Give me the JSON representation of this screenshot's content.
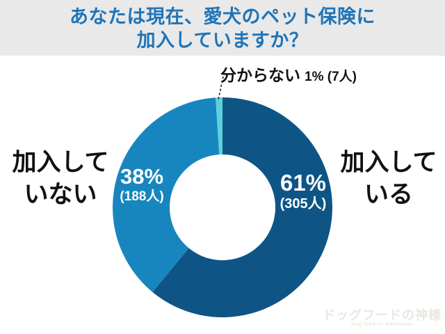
{
  "header": {
    "title_line1": "あなたは現在、愛犬のペット保険に",
    "title_line2": "加入していますか？"
  },
  "colors": {
    "title_text": "#1f74b8",
    "header_band": "#e9e9e9",
    "callout_text": "#111111",
    "inside_label_text": "#ffffff",
    "watermark_text": "#eae7e1"
  },
  "chart_data": {
    "type": "pie",
    "donut": true,
    "title": "あなたは現在、愛犬のペット保険に加入していますか？",
    "direction": "clockwise",
    "start_angle_deg": 0,
    "unit": "人",
    "slices": [
      {
        "label": "加入している",
        "percent": 61,
        "count": 305,
        "percent_label": "61%",
        "count_label": "(305人)",
        "callout_lines": [
          "加入して",
          "いる"
        ],
        "color": "#0e5586"
      },
      {
        "label": "加入していない",
        "percent": 38,
        "count": 188,
        "percent_label": "38%",
        "count_label": "(188人)",
        "callout_lines": [
          "加入して",
          "いない"
        ],
        "color": "#1786be"
      },
      {
        "label": "分からない",
        "percent": 1,
        "count": 7,
        "percent_label": "1%",
        "count_label": "(7人)",
        "inline_value_label": "1% (7人)",
        "color": "#60cfdc"
      }
    ]
  },
  "watermark": {
    "logo_text": "ドッグフードの神様",
    "logo_subtext": "Dog food no Kamisama"
  }
}
